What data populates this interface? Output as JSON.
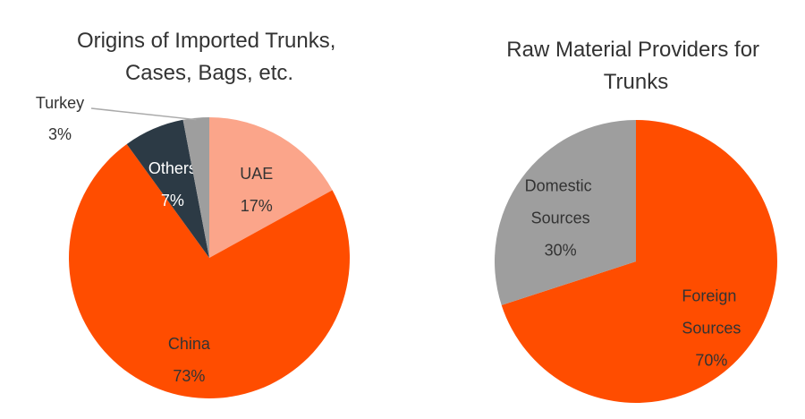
{
  "chart_data": [
    {
      "type": "pie",
      "title": "Origins of Imported Trunks, Cases, Bags, etc.",
      "categories": [
        "UAE",
        "China",
        "Others",
        "Turkey"
      ],
      "values": [
        17,
        73,
        7,
        3
      ],
      "value_labels": [
        "17%",
        "73%",
        "7%",
        "3%"
      ],
      "colors": [
        "#fba58a",
        "#ff4d00",
        "#2c3a45",
        "#9e9e9e"
      ]
    },
    {
      "type": "pie",
      "title": "Raw Material Providers for Trunks",
      "categories": [
        "Foreign Sources",
        "Domestic Sources"
      ],
      "values": [
        70,
        30
      ],
      "value_labels": [
        "70%",
        "30%"
      ],
      "colors": [
        "#ff4d00",
        "#9e9e9e"
      ]
    }
  ]
}
